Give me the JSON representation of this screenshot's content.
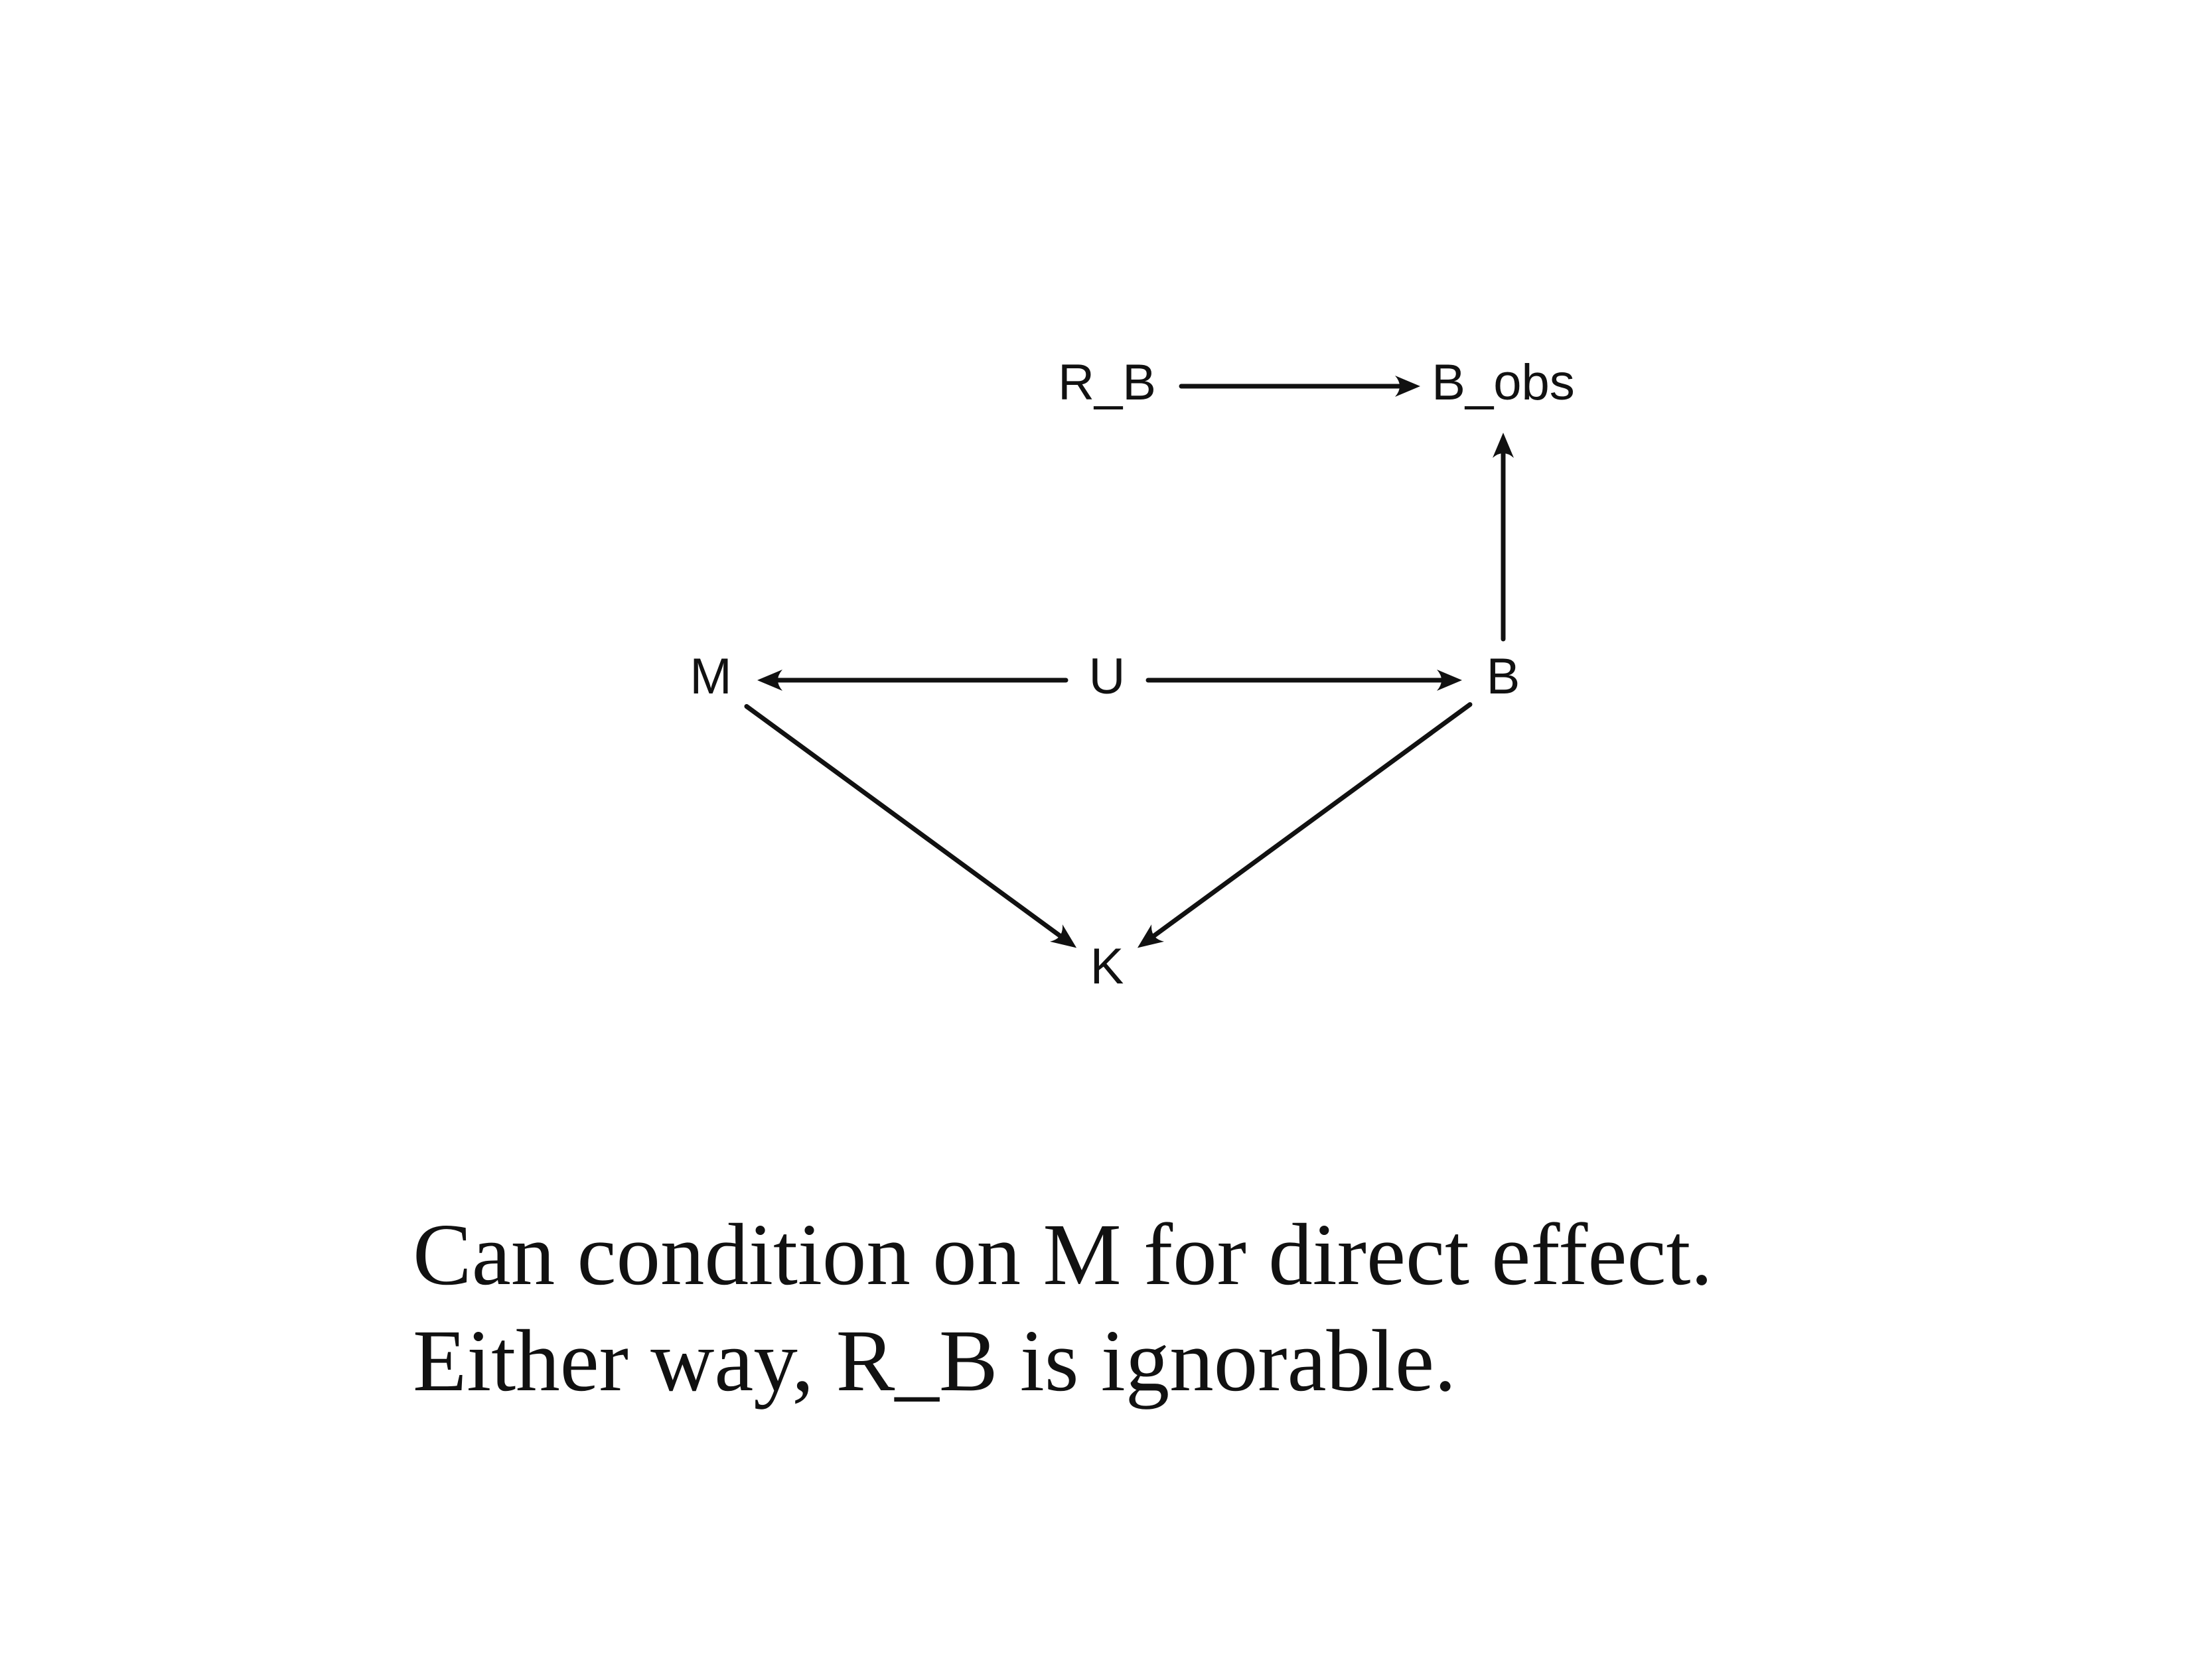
{
  "diagram": {
    "nodes": [
      {
        "id": "R_B",
        "label": "R_B"
      },
      {
        "id": "B_obs",
        "label": "B_obs"
      },
      {
        "id": "M",
        "label": "M"
      },
      {
        "id": "U",
        "label": "U"
      },
      {
        "id": "B",
        "label": "B"
      },
      {
        "id": "K",
        "label": "K"
      }
    ],
    "edges": [
      {
        "from": "R_B",
        "to": "B_obs"
      },
      {
        "from": "B",
        "to": "B_obs"
      },
      {
        "from": "U",
        "to": "M"
      },
      {
        "from": "U",
        "to": "B"
      },
      {
        "from": "M",
        "to": "K"
      },
      {
        "from": "B",
        "to": "K"
      }
    ],
    "line_color": "#111111"
  },
  "caption": {
    "line1": "Can condition on M for direct effect.",
    "line2": "Either way, R_B is ignorable."
  }
}
